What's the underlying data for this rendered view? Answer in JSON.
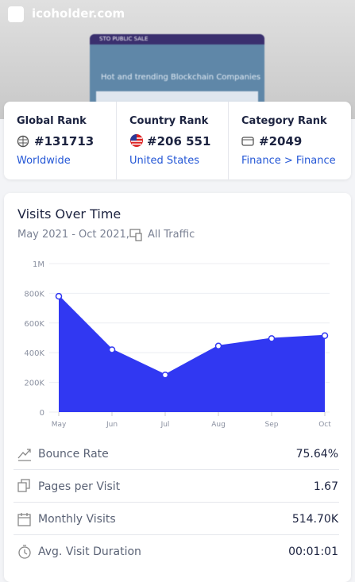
{
  "header": {
    "site": "icoholder.com",
    "banner": "STO PUBLIC SALE",
    "tagline": "Hot and trending Blockchain Companies"
  },
  "ranks": [
    {
      "label": "Global Rank",
      "value": "#131713",
      "link": "Worldwide"
    },
    {
      "label": "Country Rank",
      "value": "#206 551",
      "link": "United States"
    },
    {
      "label": "Category Rank",
      "value": "#2049",
      "link": "Finance > Finance"
    }
  ],
  "visits": {
    "title": "Visits Over Time",
    "period": "May 2021 - Oct 2021,",
    "traffic": "All Traffic"
  },
  "chart_data": {
    "type": "area",
    "color": "#3138f2",
    "categories": [
      "May",
      "Jun",
      "Jul",
      "Aug",
      "Sep",
      "Oct"
    ],
    "values": [
      780000,
      420000,
      250000,
      445000,
      495000,
      514700
    ],
    "ylim": [
      0,
      1000000
    ],
    "yticks": [
      0,
      {
        "value": 200000,
        "label": "200K"
      },
      {
        "value": 400000,
        "label": "400K"
      },
      {
        "value": 600000,
        "label": "600K"
      },
      {
        "value": 800000,
        "label": "800K"
      },
      {
        "value": 1000000,
        "label": "1M"
      }
    ],
    "grid": true
  },
  "metrics": [
    {
      "label": "Bounce Rate",
      "value": "75.64%"
    },
    {
      "label": "Pages per Visit",
      "value": "1.67"
    },
    {
      "label": "Monthly Visits",
      "value": "514.70K"
    },
    {
      "label": "Avg. Visit Duration",
      "value": "00:01:01"
    }
  ]
}
